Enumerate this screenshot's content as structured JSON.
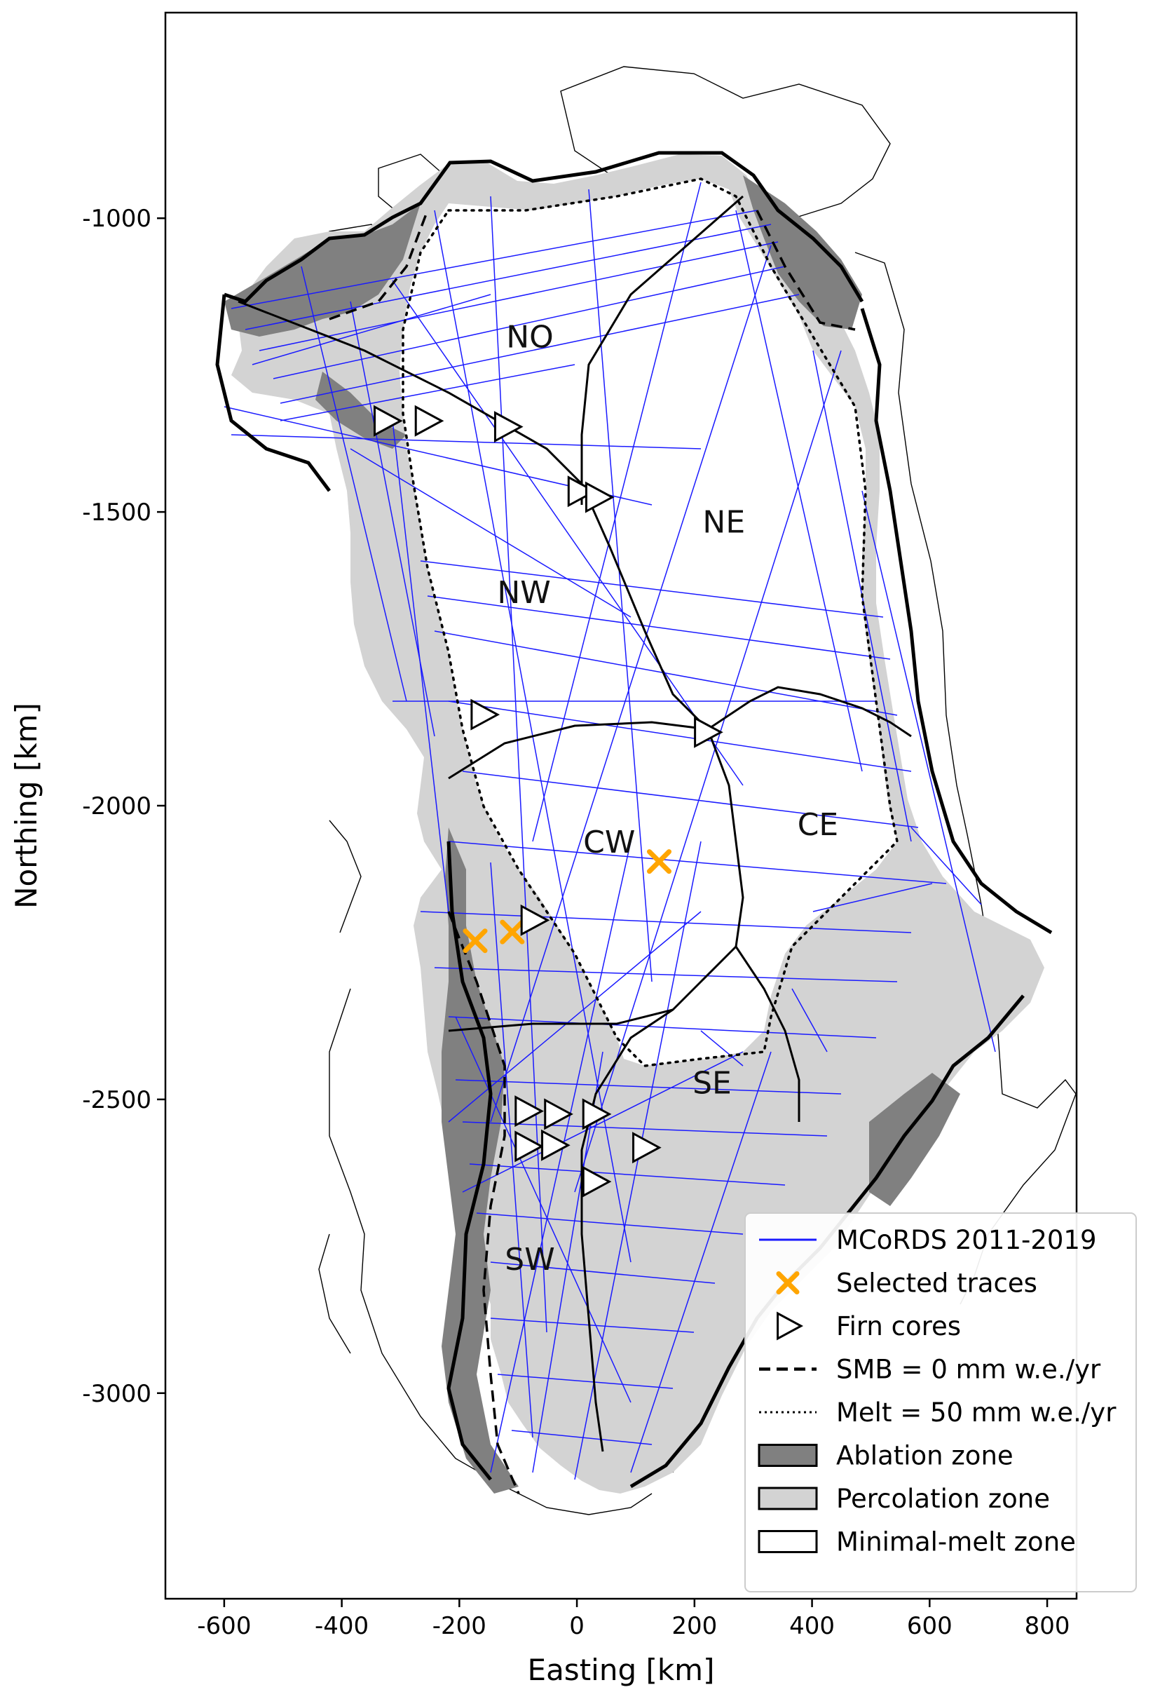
{
  "chart_data": {
    "type": "map",
    "xlabel": "Easting [km]",
    "ylabel": "Northing [km]",
    "xlim": [
      -700,
      850
    ],
    "ylim": [
      -3350,
      -650
    ],
    "xticks": [
      -600,
      -400,
      -200,
      0,
      200,
      400,
      600,
      800
    ],
    "yticks": [
      -1000,
      -1500,
      -2000,
      -2500,
      -3000
    ],
    "colors": {
      "traces": "#1a1aff",
      "selected": "#ffa500",
      "ablation": "#808080",
      "percolation": "#d3d3d3",
      "minimal": "#ffffff"
    },
    "legend_placement": "lower-right",
    "legend": [
      {
        "key": "traces",
        "label": "MCoRDS 2011-2019",
        "symbol": "line"
      },
      {
        "key": "selected",
        "label": "Selected traces",
        "symbol": "x"
      },
      {
        "key": "firn",
        "label": "Firn cores",
        "symbol": "triangle"
      },
      {
        "key": "smb",
        "label": "SMB = 0 mm w.e./yr",
        "symbol": "dashed"
      },
      {
        "key": "melt",
        "label": "Melt = 50 mm w.e./yr",
        "symbol": "dotted"
      },
      {
        "key": "ablation",
        "label": "Ablation zone",
        "symbol": "patch-dark"
      },
      {
        "key": "percolation",
        "label": "Percolation zone",
        "symbol": "patch-light"
      },
      {
        "key": "minimal",
        "label": "Minimal-melt zone",
        "symbol": "patch-white"
      }
    ],
    "regions": [
      {
        "label": "NO",
        "x": -80,
        "y": -1220
      },
      {
        "label": "NE",
        "x": 250,
        "y": -1535
      },
      {
        "label": "NW",
        "x": -90,
        "y": -1655
      },
      {
        "label": "CW",
        "x": 55,
        "y": -2080
      },
      {
        "label": "CE",
        "x": 410,
        "y": -2050
      },
      {
        "label": "SE",
        "x": 230,
        "y": -2490
      },
      {
        "label": "SW",
        "x": -80,
        "y": -2790
      }
    ],
    "selected_traces": [
      {
        "x": -173,
        "y": -2230
      },
      {
        "x": -110,
        "y": -2215
      },
      {
        "x": 140,
        "y": -2095
      }
    ],
    "firn_cores": [
      {
        "x": -325,
        "y": -1345
      },
      {
        "x": -255,
        "y": -1345
      },
      {
        "x": -120,
        "y": -1355
      },
      {
        "x": 5,
        "y": -1465
      },
      {
        "x": 35,
        "y": -1475
      },
      {
        "x": -160,
        "y": -1845
      },
      {
        "x": 220,
        "y": -1875
      },
      {
        "x": -75,
        "y": -2195
      },
      {
        "x": -85,
        "y": -2520
      },
      {
        "x": -35,
        "y": -2525
      },
      {
        "x": 30,
        "y": -2525
      },
      {
        "x": -85,
        "y": -2580
      },
      {
        "x": -40,
        "y": -2578
      },
      {
        "x": 115,
        "y": -2582
      },
      {
        "x": 30,
        "y": -2640
      }
    ]
  }
}
